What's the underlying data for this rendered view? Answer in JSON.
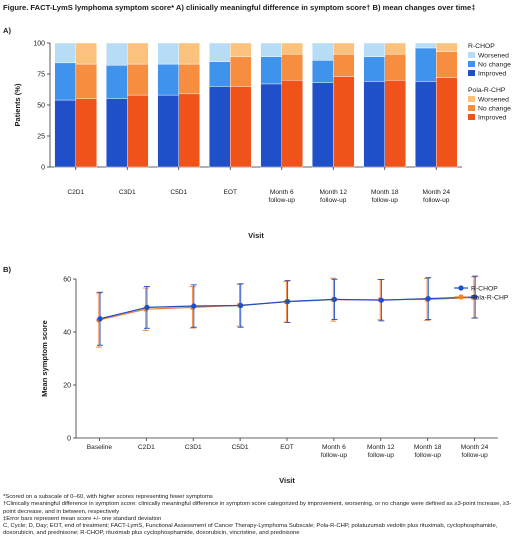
{
  "figure_title": "Figure. FACT-LymS lymphoma symptom score* A) clinically meaningful difference in symptom score† B) mean changes over time‡",
  "panel_a_label": "A)",
  "panel_b_label": "B)",
  "footnotes": [
    "*Scored on a subscale of 0–60, with higher scores representing fewer symptoms",
    "†Clinically meaningful difference in symptom score: clinically meaningful difference in symptom score categorized by improvement, worsening, or no change were defined as ≥3-point increase, ≥3-point decrease, and in between, respectively",
    "‡Error bars represent mean score +/- one standard deviation",
    "C, Cycle; D, Day; EOT, end of treatment; FACT-LymS, Functional Assessment of Cancer Therapy-Lymphoma Subscale; Pola-R-CHP, polatuzumab vedotin plus rituximab, cyclophosphamide, doxorubicin, and prednisone; R-CHOP, rituximab plus cyclophosphamide, doxorubicin, vincristine, and prednisone"
  ],
  "chart_data": [
    {
      "type": "bar",
      "stacked": true,
      "xlabel": "Visit",
      "ylabel": "Patients (%)",
      "ylim": [
        0,
        100
      ],
      "yticks": [
        0,
        25,
        50,
        75,
        100
      ],
      "categories": [
        "C2D1",
        "C3D1",
        "C5D1",
        "EOT",
        "Month 6\nfollow-up",
        "Month 12\nfollow-up",
        "Month 18\nfollow-up",
        "Month 24\nfollow-up"
      ],
      "groups": [
        {
          "name": "R-CHOP",
          "series": [
            {
              "name": "Improved",
              "color": "#1f4fc9",
              "values": [
                54,
                55,
                58,
                65,
                67,
                68,
                69,
                69
              ]
            },
            {
              "name": "No change",
              "color": "#3f93ec",
              "values": [
                30,
                27,
                25,
                20,
                22,
                18,
                20,
                27
              ]
            },
            {
              "name": "Worsened",
              "color": "#b7dcf5",
              "values": [
                16,
                18,
                17,
                15,
                11,
                14,
                11,
                4
              ]
            }
          ]
        },
        {
          "name": "Pola-R-CHP",
          "series": [
            {
              "name": "Improved",
              "color": "#f0531a",
              "values": [
                55,
                58,
                59,
                65,
                70,
                73,
                70,
                72
              ]
            },
            {
              "name": "No change",
              "color": "#f68d3f",
              "values": [
                28,
                25,
                24,
                24,
                21,
                18,
                21,
                21
              ]
            },
            {
              "name": "Worsened",
              "color": "#fbc27d",
              "values": [
                17,
                17,
                17,
                11,
                9,
                9,
                9,
                7
              ]
            }
          ]
        }
      ],
      "legend_position": "right"
    },
    {
      "type": "line",
      "xlabel": "Visit",
      "ylabel": "Mean symptom score",
      "ylim": [
        0,
        60
      ],
      "yticks": [
        0,
        20,
        40,
        60
      ],
      "categories": [
        "Baseline",
        "C2D1",
        "C3D1",
        "C5D1",
        "EOT",
        "Month 6\nfollow-up",
        "Month 12\nfollow-up",
        "Month 18\nfollow-up",
        "Month 24\nfollow-up"
      ],
      "series": [
        {
          "name": "R-CHOP",
          "color": "#1f4fc9",
          "values": [
            45.0,
            49.3,
            49.8,
            50.0,
            51.5,
            52.3,
            52.0,
            52.6,
            53.2
          ],
          "sd": [
            10.0,
            7.9,
            8.0,
            8.2,
            7.9,
            7.6,
            7.8,
            7.9,
            7.9
          ]
        },
        {
          "name": "Pola-R-CHP",
          "color": "#f28030",
          "values": [
            44.5,
            48.6,
            49.3,
            50.1,
            51.4,
            52.2,
            52.2,
            52.3,
            53.0
          ],
          "sd": [
            10.2,
            8.0,
            7.8,
            7.9,
            7.7,
            8.1,
            7.6,
            7.9,
            7.8
          ]
        }
      ],
      "legend_position": "top-right"
    }
  ]
}
